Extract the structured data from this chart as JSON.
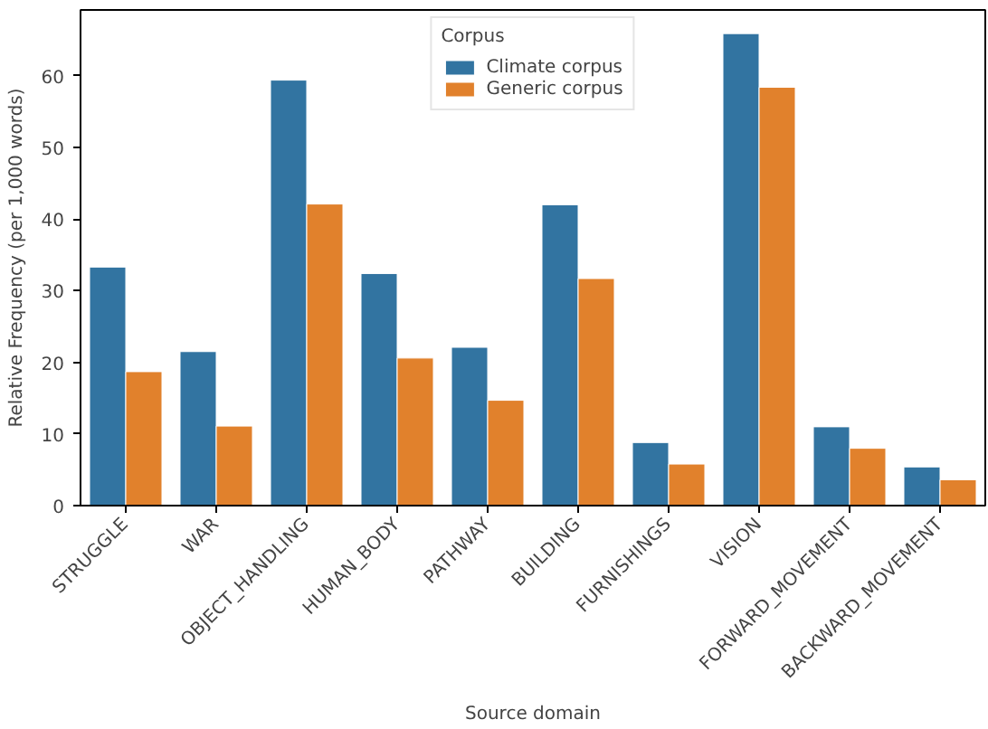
{
  "chart_data": {
    "type": "bar",
    "xlabel": "Source domain",
    "ylabel": "Relative Frequency (per 1,000 words)",
    "legend_title": "Corpus",
    "categories": [
      "STRUGGLE",
      "WAR",
      "OBJECT_HANDLING",
      "HUMAN_BODY",
      "PATHWAY",
      "BUILDING",
      "FURNISHINGS",
      "VISION",
      "FORWARD_MOVEMENT",
      "BACKWARD_MOVEMENT"
    ],
    "series": [
      {
        "name": "Climate corpus",
        "color": "#3274a1",
        "values": [
          33.3,
          21.5,
          59.4,
          32.4,
          22.1,
          42.0,
          8.8,
          65.9,
          11.0,
          5.4
        ]
      },
      {
        "name": "Generic corpus",
        "color": "#e1812c",
        "values": [
          18.7,
          11.1,
          42.1,
          20.6,
          14.7,
          31.7,
          5.8,
          58.4,
          8.0,
          3.6
        ]
      }
    ],
    "ylim": [
      0,
      69.2
    ],
    "yticks": [
      0,
      10,
      20,
      30,
      40,
      50,
      60
    ],
    "grid": false,
    "legend": "top"
  }
}
